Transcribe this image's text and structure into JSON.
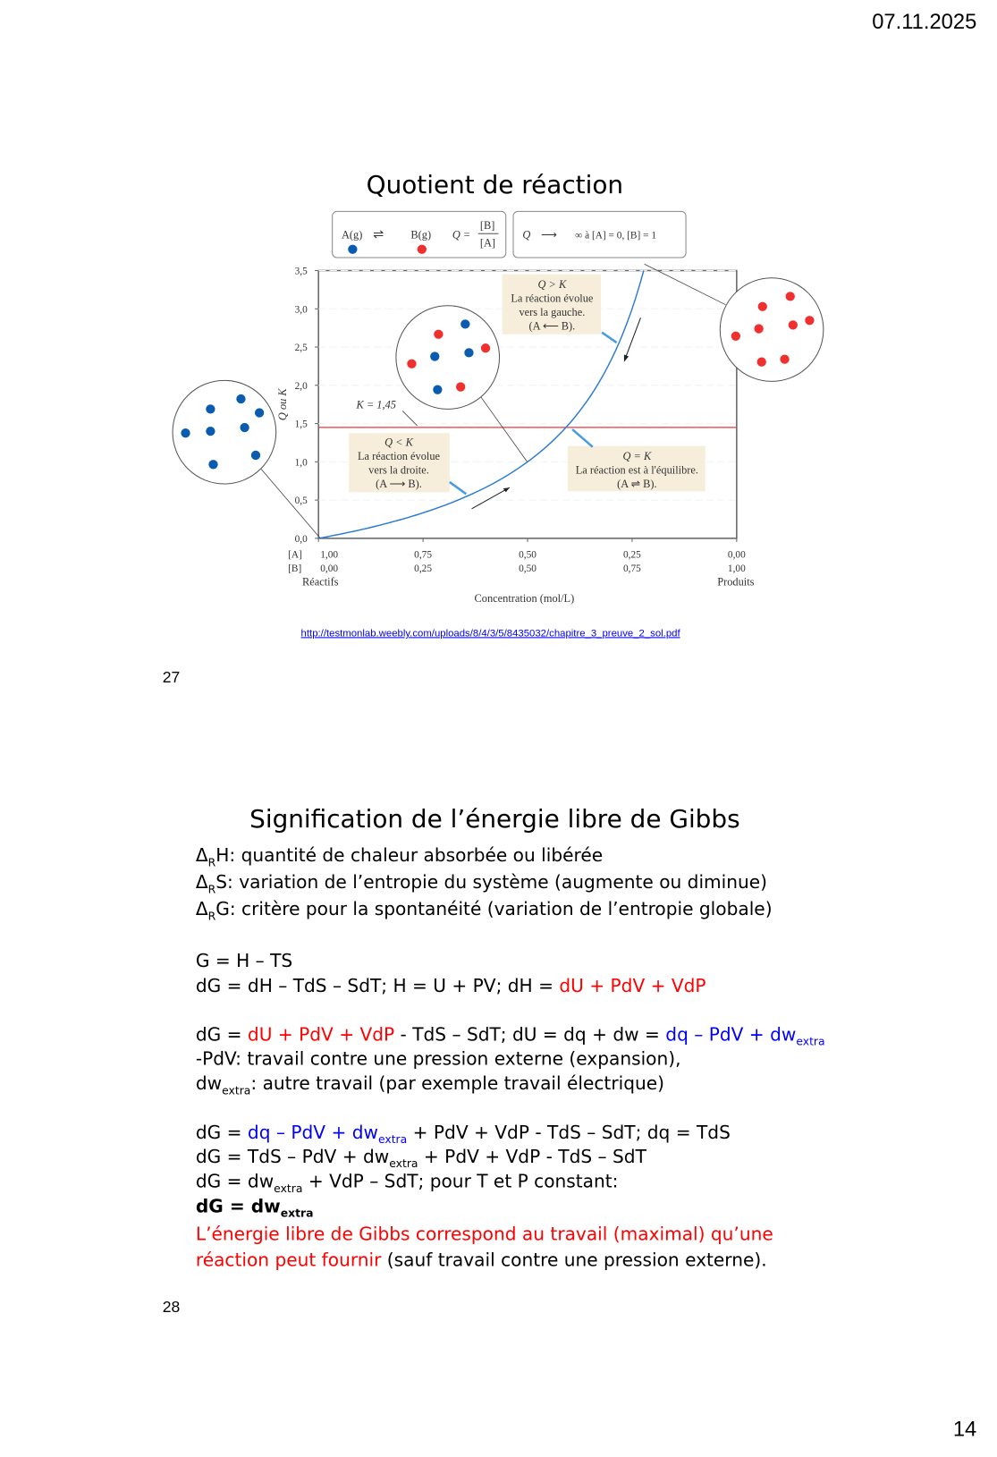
{
  "header": {
    "date": "07.11.2025"
  },
  "slide27": {
    "title": "Quotient de réaction",
    "page_number": "27",
    "source_link": "http://testmonlab.weebly.com/uploads/8/4/3/5/8435032/chapitre_3_preuve_2_sol.pdf",
    "legend": {
      "species_a": "A(g)",
      "species_b": "B(g)",
      "q_def_lhs": "Q =",
      "q_num": "[B]",
      "q_den": "[A]",
      "limit_q": "Q",
      "limit_text": "∞ à [A] = 0, [B] = 1",
      "color_a": "#0a5cb0",
      "color_b": "#f0302f"
    },
    "figure": {
      "y_axis_label": "Q ou K",
      "x_axis_label": "Concentration (mol/L)",
      "row_label_a": "[A]",
      "row_label_b": "[B]",
      "left_caption": "Réactifs",
      "right_caption": "Produits",
      "y_ticks": [
        "0,0",
        "0,5",
        "1,0",
        "1,5",
        "2,0",
        "2,5",
        "3,0",
        "3,5"
      ],
      "x_ticks_a": [
        "1,00",
        "0,75",
        "0,50",
        "0,25",
        "0,00"
      ],
      "x_ticks_b": [
        "0,00",
        "0,25",
        "0,50",
        "0,75",
        "1,00"
      ],
      "k_label": "K = 1,45",
      "annotations": {
        "q_gt_k": [
          "Q > K",
          "La réaction évolue",
          "vers la gauche.",
          "(A  ⟵  B)."
        ],
        "q_lt_k": [
          "Q < K",
          "La réaction évolue",
          "vers la droite.",
          "(A  ⟶  B)."
        ],
        "q_eq_k": [
          "Q = K",
          "La réaction est à l'équilibre.",
          "(A  ⇌  B)."
        ]
      }
    },
    "chart_data": {
      "type": "line",
      "xlabel": "Concentration (mol/L)",
      "ylabel": "Q ou K",
      "xlim": [
        0,
        1
      ],
      "ylim": [
        0,
        3.5
      ],
      "series": [
        {
          "x": [
            0,
            0.1,
            0.2,
            0.3,
            0.4,
            0.5,
            0.592,
            0.65,
            0.72,
            0.778
          ],
          "y": [
            0,
            0.11,
            0.25,
            0.43,
            0.67,
            1.0,
            1.45,
            1.86,
            2.57,
            3.5
          ]
        }
      ],
      "reference_line": {
        "y": 1.45,
        "color": "#e8393b"
      },
      "curve_color": "#2a7bd0",
      "grid": false
    }
  },
  "slide28": {
    "title": "Signification de l’énergie libre de Gibbs",
    "page_number": "28",
    "lines": [
      [
        {
          "t": "Δ"
        },
        {
          "t": "R",
          "sub": true
        },
        {
          "t": "H: quantité de chaleur absorbée ou libérée"
        }
      ],
      [
        {
          "t": "Δ"
        },
        {
          "t": "R",
          "sub": true
        },
        {
          "t": "S: variation de l’entropie du système (augmente ou diminue)"
        }
      ],
      [
        {
          "t": "Δ"
        },
        {
          "t": "R",
          "sub": true
        },
        {
          "t": "G: critère pour la spontanéité (variation de l’entropie globale)"
        }
      ],
      [
        {
          "t": "G = H – TS"
        }
      ],
      [
        {
          "t": "dG = dH – TdS – SdT; H = U + PV; dH = "
        },
        {
          "t": "dU + PdV + VdP",
          "c": "red"
        }
      ],
      [
        {
          "t": "dG = "
        },
        {
          "t": "dU + PdV + VdP",
          "c": "red"
        },
        {
          "t": " - TdS – SdT; dU = dq + dw = "
        },
        {
          "t": "dq – PdV + dw",
          "c": "blue"
        },
        {
          "t": "extra",
          "c": "blue",
          "sub": true
        }
      ],
      [
        {
          "t": "-PdV: travail contre une pression externe (expansion),"
        }
      ],
      [
        {
          "t": "dw"
        },
        {
          "t": "extra",
          "sub": true
        },
        {
          "t": ": autre travail (par exemple travail électrique)"
        }
      ],
      [
        {
          "t": "dG = "
        },
        {
          "t": "dq – PdV + dw",
          "c": "blue"
        },
        {
          "t": "extra",
          "c": "blue",
          "sub": true
        },
        {
          "t": " + PdV + VdP - TdS – SdT; dq = TdS"
        }
      ],
      [
        {
          "t": "dG = TdS – PdV + dw"
        },
        {
          "t": "extra",
          "sub": true
        },
        {
          "t": " + PdV + VdP - TdS – SdT"
        }
      ],
      [
        {
          "t": "dG = dw"
        },
        {
          "t": "extra",
          "sub": true
        },
        {
          "t": "  + VdP  – SdT; pour T et P constant:"
        }
      ],
      [
        {
          "t": "dG = dw",
          "b": true
        },
        {
          "t": "extra",
          "sub": true,
          "b": true
        }
      ],
      [
        {
          "t": "L’énergie libre de Gibbs correspond au travail (maximal) qu’une",
          "c": "red"
        }
      ],
      [
        {
          "t": "réaction peut fournir",
          "c": "red"
        },
        {
          "t": " (sauf travail contre une pression externe)."
        }
      ]
    ]
  },
  "footer": {
    "sheet_number": "14"
  }
}
